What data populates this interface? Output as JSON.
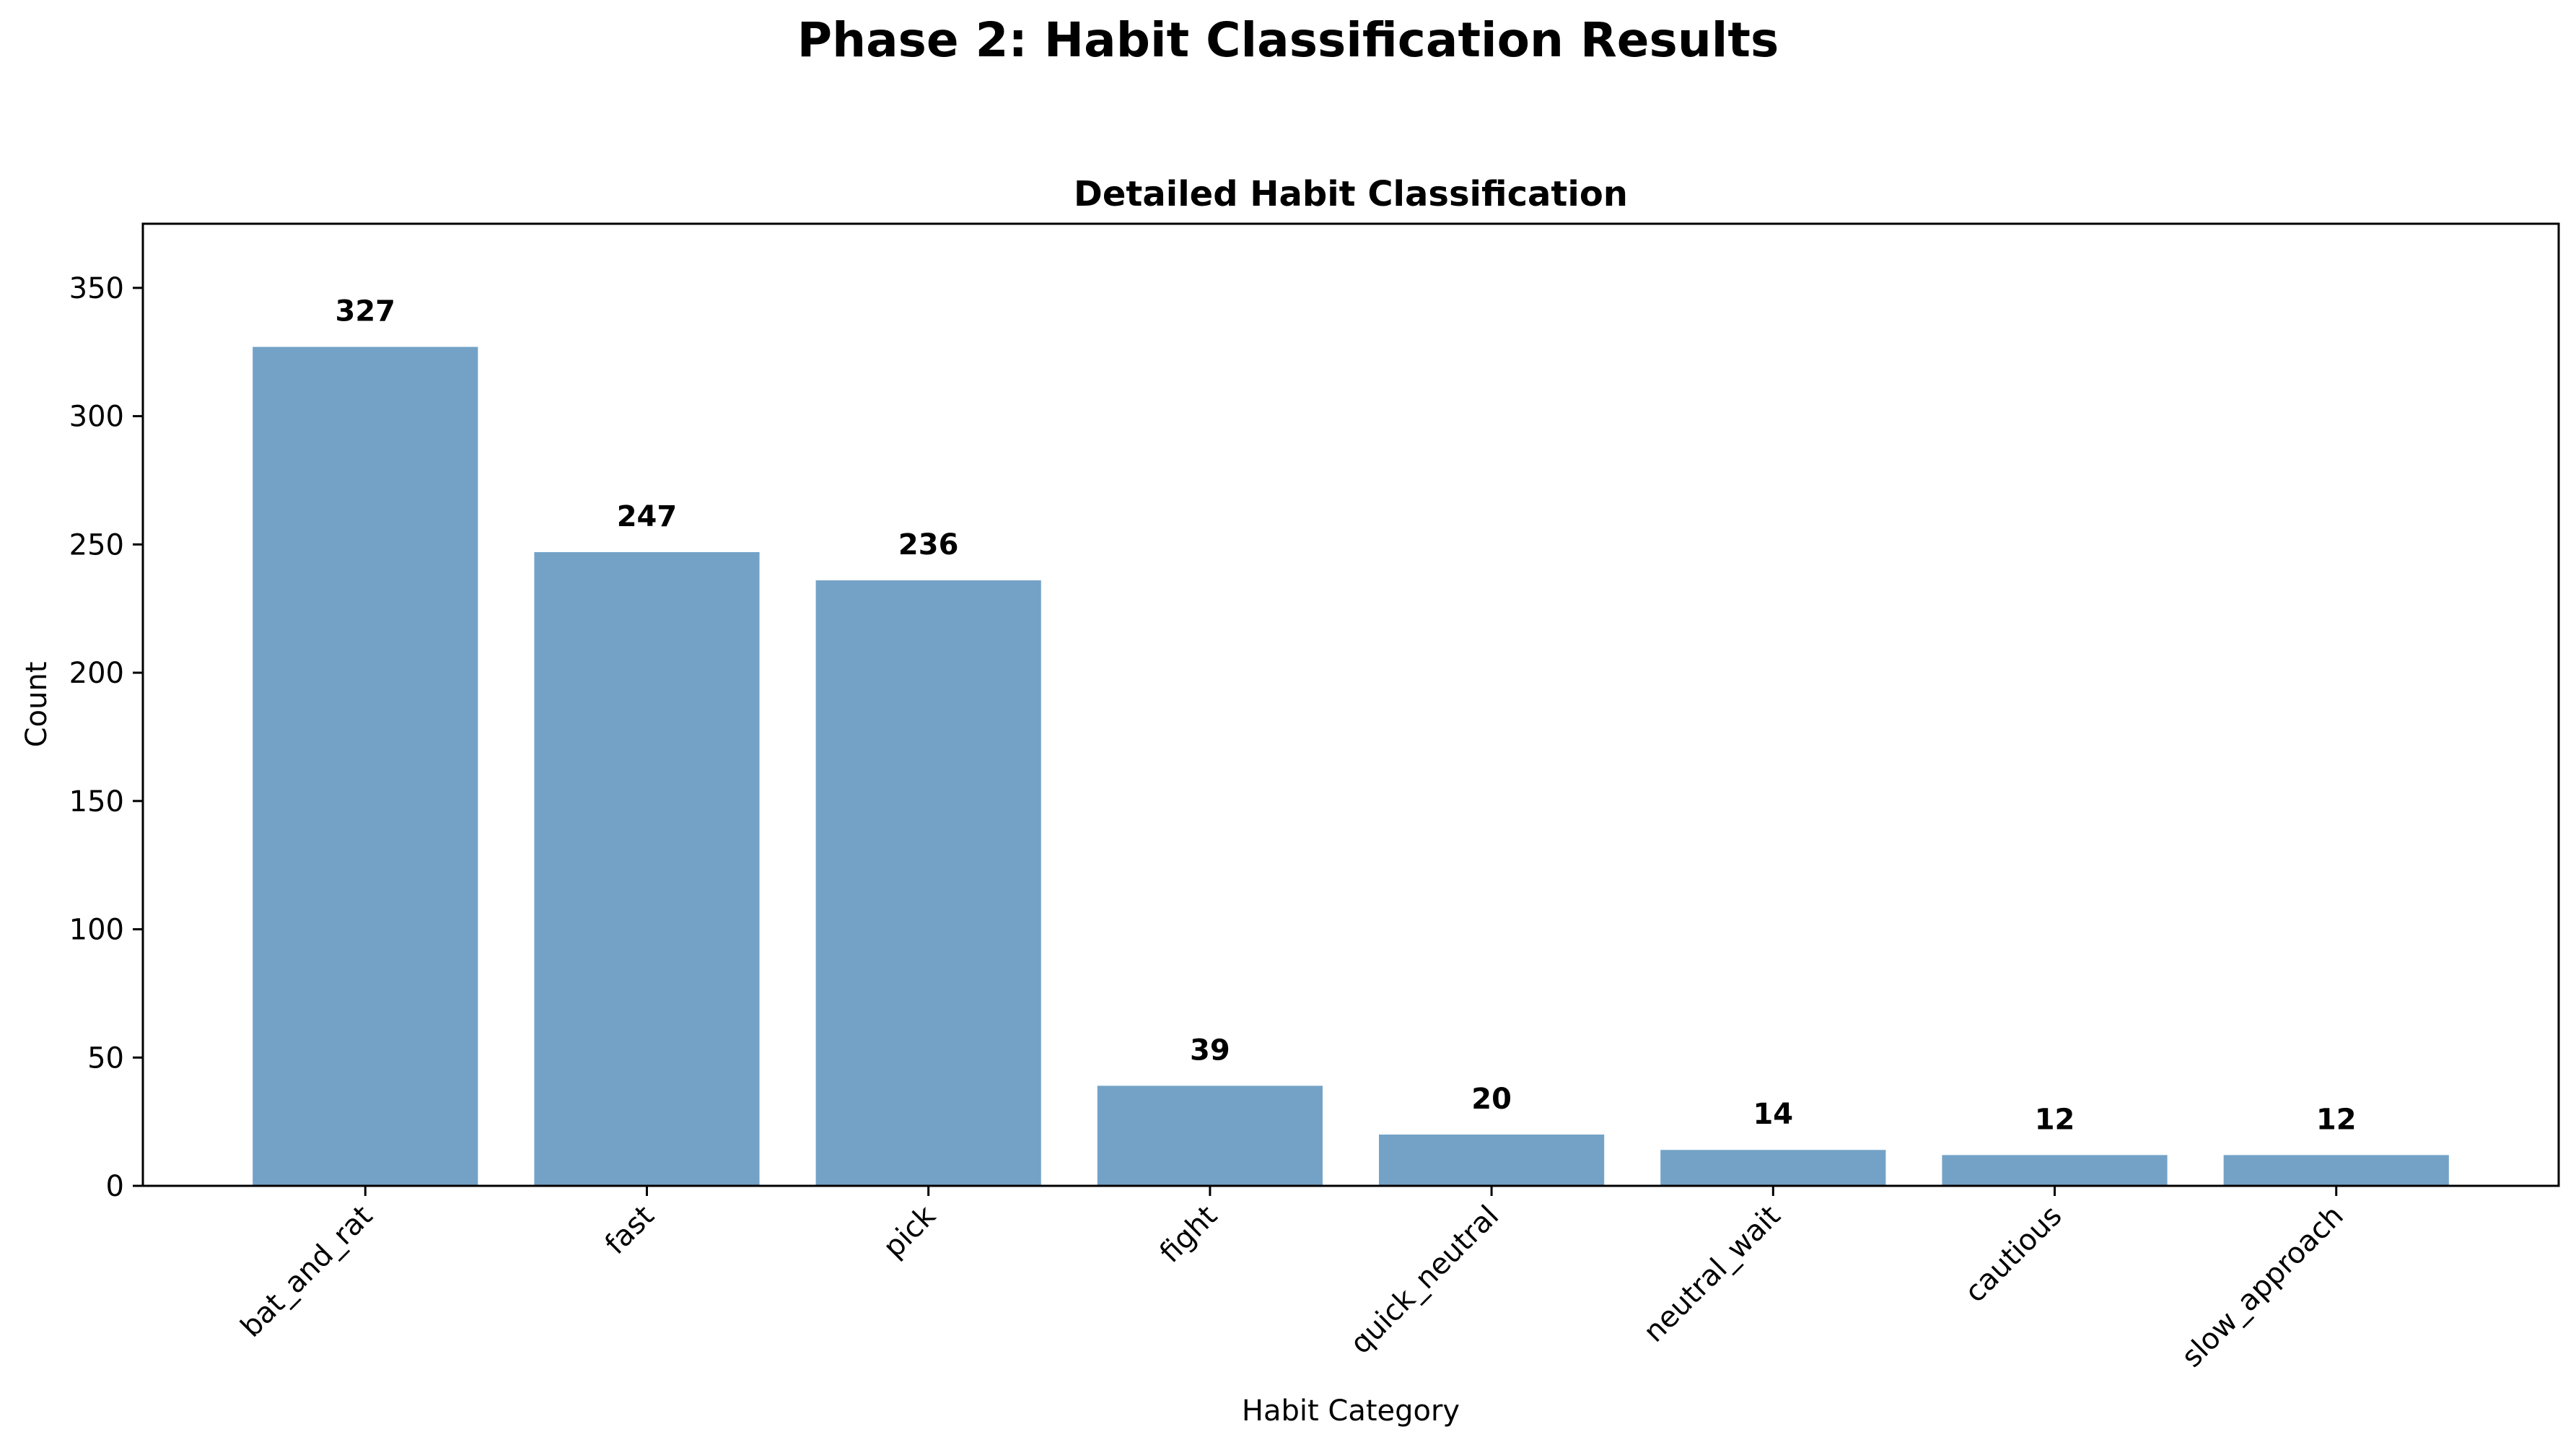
{
  "figure": {
    "suptitle": "Phase 2: Habit Classification Results"
  },
  "chart_data": {
    "type": "bar",
    "title": "Detailed Habit Classification",
    "xlabel": "Habit Category",
    "ylabel": "Count",
    "categories": [
      "bat_and_rat",
      "fast",
      "pick",
      "fight",
      "quick_neutral",
      "neutral_wait",
      "cautious",
      "slow_approach"
    ],
    "values": [
      327,
      247,
      236,
      39,
      20,
      14,
      12,
      12
    ],
    "data_labels": [
      "327",
      "247",
      "236",
      "39",
      "20",
      "14",
      "12",
      "12"
    ],
    "ylim": [
      0,
      375
    ],
    "yticks": [
      0,
      50,
      100,
      150,
      200,
      250,
      300,
      350
    ],
    "ytick_labels": [
      "0",
      "50",
      "100",
      "150",
      "200",
      "250",
      "300",
      "350"
    ],
    "xtick_rotation": "45 degrees",
    "grid": false,
    "legend": "none",
    "bar_color": "#74a2c7"
  }
}
